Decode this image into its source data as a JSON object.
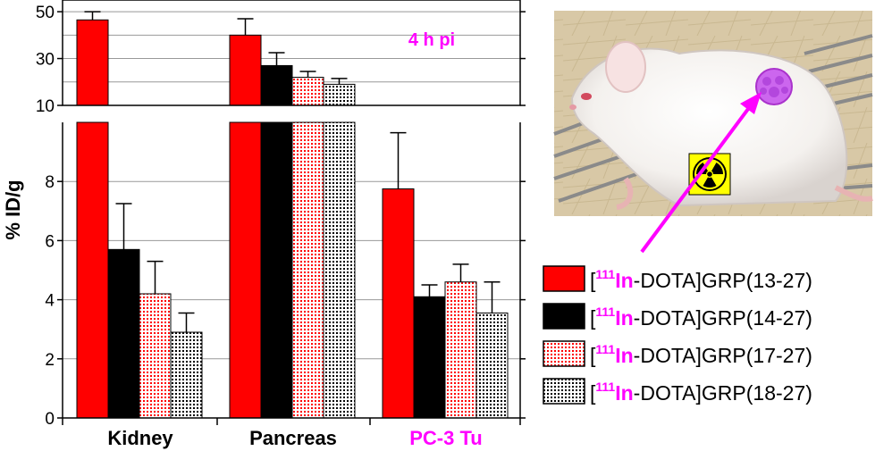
{
  "chart_data": {
    "type": "bar",
    "categories": [
      "Kidney",
      "Pancreas",
      "PC-3 Tu"
    ],
    "ylabel": "% ID/g",
    "annotation": "4 h pi",
    "broken_axis": true,
    "lower_axis": {
      "ylim": [
        0,
        10
      ],
      "ticks": [
        "0",
        "2",
        "4",
        "6",
        "8"
      ]
    },
    "upper_axis": {
      "ylim": [
        10,
        55
      ],
      "ticks": [
        "10",
        "30",
        "50"
      ]
    },
    "legend_position": "bottom-right",
    "series": [
      {
        "name_sup": "111",
        "name_iso": "In",
        "name_rest": "-DOTA]GRP(13-27)",
        "fill": "solid-red",
        "values": [
          46.5,
          40,
          7.75
        ],
        "errors": [
          3.5,
          7,
          1.9
        ]
      },
      {
        "name_sup": "111",
        "name_iso": "In",
        "name_rest": "-DOTA]GRP(14-27)",
        "fill": "solid-black",
        "values": [
          5.7,
          27,
          4.1
        ],
        "errors": [
          1.55,
          5.5,
          0.4
        ]
      },
      {
        "name_sup": "111",
        "name_iso": "In",
        "name_rest": "-DOTA]GRP(17-27)",
        "fill": "red-dots",
        "values": [
          4.2,
          22,
          4.6
        ],
        "errors": [
          1.1,
          2.5,
          0.6
        ]
      },
      {
        "name_sup": "111",
        "name_iso": "In",
        "name_rest": "-DOTA]GRP(18-27)",
        "fill": "black-dots",
        "values": [
          2.9,
          19,
          3.55
        ],
        "errors": [
          0.65,
          2.5,
          1.05
        ]
      }
    ],
    "colors": {
      "red": "#ff0000",
      "black": "#000000",
      "accent": "#ff00ff",
      "grid": "#999999"
    }
  },
  "photo": {
    "warning_icon": "radioactive-icon",
    "tumor_icon": "tumor-icon",
    "subject": "mouse-icon"
  }
}
